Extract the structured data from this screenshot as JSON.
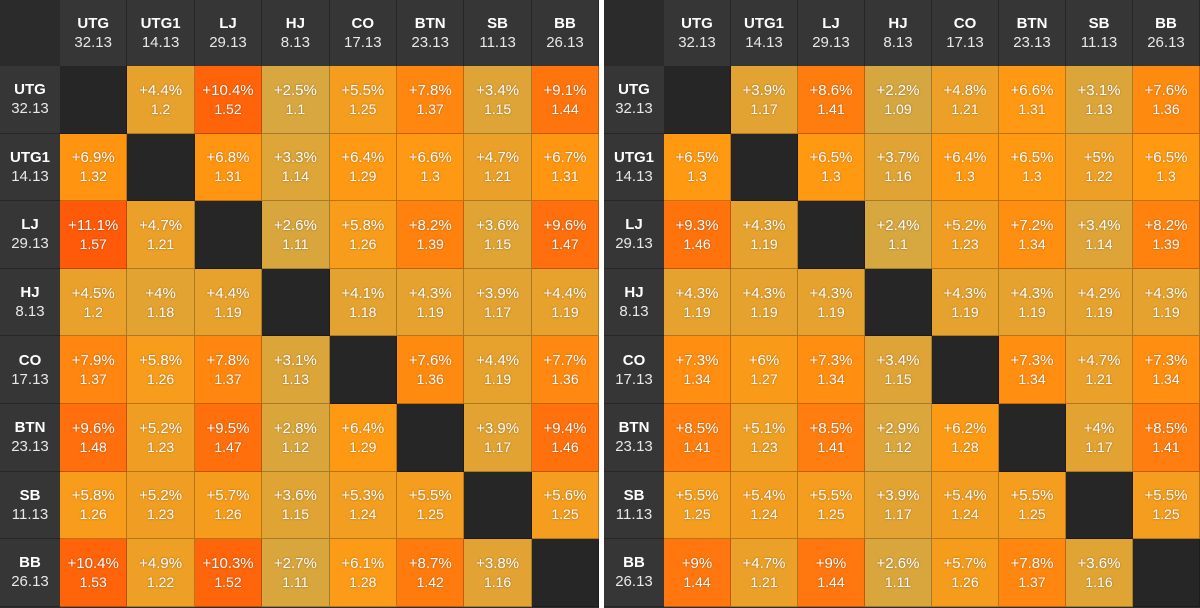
{
  "tables": [
    {
      "positions": [
        {
          "name": "UTG",
          "value": "32.13"
        },
        {
          "name": "UTG1",
          "value": "14.13"
        },
        {
          "name": "LJ",
          "value": "29.13"
        },
        {
          "name": "HJ",
          "value": "8.13"
        },
        {
          "name": "CO",
          "value": "17.13"
        },
        {
          "name": "BTN",
          "value": "23.13"
        },
        {
          "name": "SB",
          "value": "11.13"
        },
        {
          "name": "BB",
          "value": "26.13"
        }
      ],
      "rows": [
        [
          null,
          {
            "pct": "+4.4%",
            "mult": "1.2"
          },
          {
            "pct": "+10.4%",
            "mult": "1.52"
          },
          {
            "pct": "+2.5%",
            "mult": "1.1"
          },
          {
            "pct": "+5.5%",
            "mult": "1.25"
          },
          {
            "pct": "+7.8%",
            "mult": "1.37"
          },
          {
            "pct": "+3.4%",
            "mult": "1.15"
          },
          {
            "pct": "+9.1%",
            "mult": "1.44"
          }
        ],
        [
          {
            "pct": "+6.9%",
            "mult": "1.32"
          },
          null,
          {
            "pct": "+6.8%",
            "mult": "1.31"
          },
          {
            "pct": "+3.3%",
            "mult": "1.14"
          },
          {
            "pct": "+6.4%",
            "mult": "1.29"
          },
          {
            "pct": "+6.6%",
            "mult": "1.3"
          },
          {
            "pct": "+4.7%",
            "mult": "1.21"
          },
          {
            "pct": "+6.7%",
            "mult": "1.31"
          }
        ],
        [
          {
            "pct": "+11.1%",
            "mult": "1.57"
          },
          {
            "pct": "+4.7%",
            "mult": "1.21"
          },
          null,
          {
            "pct": "+2.6%",
            "mult": "1.11"
          },
          {
            "pct": "+5.8%",
            "mult": "1.26"
          },
          {
            "pct": "+8.2%",
            "mult": "1.39"
          },
          {
            "pct": "+3.6%",
            "mult": "1.15"
          },
          {
            "pct": "+9.6%",
            "mult": "1.47"
          }
        ],
        [
          {
            "pct": "+4.5%",
            "mult": "1.2"
          },
          {
            "pct": "+4%",
            "mult": "1.18"
          },
          {
            "pct": "+4.4%",
            "mult": "1.19"
          },
          null,
          {
            "pct": "+4.1%",
            "mult": "1.18"
          },
          {
            "pct": "+4.3%",
            "mult": "1.19"
          },
          {
            "pct": "+3.9%",
            "mult": "1.17"
          },
          {
            "pct": "+4.4%",
            "mult": "1.19"
          }
        ],
        [
          {
            "pct": "+7.9%",
            "mult": "1.37"
          },
          {
            "pct": "+5.8%",
            "mult": "1.26"
          },
          {
            "pct": "+7.8%",
            "mult": "1.37"
          },
          {
            "pct": "+3.1%",
            "mult": "1.13"
          },
          null,
          {
            "pct": "+7.6%",
            "mult": "1.36"
          },
          {
            "pct": "+4.4%",
            "mult": "1.19"
          },
          {
            "pct": "+7.7%",
            "mult": "1.36"
          }
        ],
        [
          {
            "pct": "+9.6%",
            "mult": "1.48"
          },
          {
            "pct": "+5.2%",
            "mult": "1.23"
          },
          {
            "pct": "+9.5%",
            "mult": "1.47"
          },
          {
            "pct": "+2.8%",
            "mult": "1.12"
          },
          {
            "pct": "+6.4%",
            "mult": "1.29"
          },
          null,
          {
            "pct": "+3.9%",
            "mult": "1.17"
          },
          {
            "pct": "+9.4%",
            "mult": "1.46"
          }
        ],
        [
          {
            "pct": "+5.8%",
            "mult": "1.26"
          },
          {
            "pct": "+5.2%",
            "mult": "1.23"
          },
          {
            "pct": "+5.7%",
            "mult": "1.26"
          },
          {
            "pct": "+3.6%",
            "mult": "1.15"
          },
          {
            "pct": "+5.3%",
            "mult": "1.24"
          },
          {
            "pct": "+5.5%",
            "mult": "1.25"
          },
          null,
          {
            "pct": "+5.6%",
            "mult": "1.25"
          }
        ],
        [
          {
            "pct": "+10.4%",
            "mult": "1.53"
          },
          {
            "pct": "+4.9%",
            "mult": "1.22"
          },
          {
            "pct": "+10.3%",
            "mult": "1.52"
          },
          {
            "pct": "+2.7%",
            "mult": "1.11"
          },
          {
            "pct": "+6.1%",
            "mult": "1.28"
          },
          {
            "pct": "+8.7%",
            "mult": "1.42"
          },
          {
            "pct": "+3.8%",
            "mult": "1.16"
          },
          null
        ]
      ]
    },
    {
      "positions": [
        {
          "name": "UTG",
          "value": "32.13"
        },
        {
          "name": "UTG1",
          "value": "14.13"
        },
        {
          "name": "LJ",
          "value": "29.13"
        },
        {
          "name": "HJ",
          "value": "8.13"
        },
        {
          "name": "CO",
          "value": "17.13"
        },
        {
          "name": "BTN",
          "value": "23.13"
        },
        {
          "name": "SB",
          "value": "11.13"
        },
        {
          "name": "BB",
          "value": "26.13"
        }
      ],
      "rows": [
        [
          null,
          {
            "pct": "+3.9%",
            "mult": "1.17"
          },
          {
            "pct": "+8.6%",
            "mult": "1.41"
          },
          {
            "pct": "+2.2%",
            "mult": "1.09"
          },
          {
            "pct": "+4.8%",
            "mult": "1.21"
          },
          {
            "pct": "+6.6%",
            "mult": "1.31"
          },
          {
            "pct": "+3.1%",
            "mult": "1.13"
          },
          {
            "pct": "+7.6%",
            "mult": "1.36"
          }
        ],
        [
          {
            "pct": "+6.5%",
            "mult": "1.3"
          },
          null,
          {
            "pct": "+6.5%",
            "mult": "1.3"
          },
          {
            "pct": "+3.7%",
            "mult": "1.16"
          },
          {
            "pct": "+6.4%",
            "mult": "1.3"
          },
          {
            "pct": "+6.5%",
            "mult": "1.3"
          },
          {
            "pct": "+5%",
            "mult": "1.22"
          },
          {
            "pct": "+6.5%",
            "mult": "1.3"
          }
        ],
        [
          {
            "pct": "+9.3%",
            "mult": "1.46"
          },
          {
            "pct": "+4.3%",
            "mult": "1.19"
          },
          null,
          {
            "pct": "+2.4%",
            "mult": "1.1"
          },
          {
            "pct": "+5.2%",
            "mult": "1.23"
          },
          {
            "pct": "+7.2%",
            "mult": "1.34"
          },
          {
            "pct": "+3.4%",
            "mult": "1.14"
          },
          {
            "pct": "+8.2%",
            "mult": "1.39"
          }
        ],
        [
          {
            "pct": "+4.3%",
            "mult": "1.19"
          },
          {
            "pct": "+4.3%",
            "mult": "1.19"
          },
          {
            "pct": "+4.3%",
            "mult": "1.19"
          },
          null,
          {
            "pct": "+4.3%",
            "mult": "1.19"
          },
          {
            "pct": "+4.3%",
            "mult": "1.19"
          },
          {
            "pct": "+4.2%",
            "mult": "1.19"
          },
          {
            "pct": "+4.3%",
            "mult": "1.19"
          }
        ],
        [
          {
            "pct": "+7.3%",
            "mult": "1.34"
          },
          {
            "pct": "+6%",
            "mult": "1.27"
          },
          {
            "pct": "+7.3%",
            "mult": "1.34"
          },
          {
            "pct": "+3.4%",
            "mult": "1.15"
          },
          null,
          {
            "pct": "+7.3%",
            "mult": "1.34"
          },
          {
            "pct": "+4.7%",
            "mult": "1.21"
          },
          {
            "pct": "+7.3%",
            "mult": "1.34"
          }
        ],
        [
          {
            "pct": "+8.5%",
            "mult": "1.41"
          },
          {
            "pct": "+5.1%",
            "mult": "1.23"
          },
          {
            "pct": "+8.5%",
            "mult": "1.41"
          },
          {
            "pct": "+2.9%",
            "mult": "1.12"
          },
          {
            "pct": "+6.2%",
            "mult": "1.28"
          },
          null,
          {
            "pct": "+4%",
            "mult": "1.17"
          },
          {
            "pct": "+8.5%",
            "mult": "1.41"
          }
        ],
        [
          {
            "pct": "+5.5%",
            "mult": "1.25"
          },
          {
            "pct": "+5.4%",
            "mult": "1.24"
          },
          {
            "pct": "+5.5%",
            "mult": "1.25"
          },
          {
            "pct": "+3.9%",
            "mult": "1.17"
          },
          {
            "pct": "+5.4%",
            "mult": "1.24"
          },
          {
            "pct": "+5.5%",
            "mult": "1.25"
          },
          null,
          {
            "pct": "+5.5%",
            "mult": "1.25"
          }
        ],
        [
          {
            "pct": "+9%",
            "mult": "1.44"
          },
          {
            "pct": "+4.7%",
            "mult": "1.21"
          },
          {
            "pct": "+9%",
            "mult": "1.44"
          },
          {
            "pct": "+2.6%",
            "mult": "1.11"
          },
          {
            "pct": "+5.7%",
            "mult": "1.26"
          },
          {
            "pct": "+7.8%",
            "mult": "1.37"
          },
          {
            "pct": "+3.6%",
            "mult": "1.16"
          },
          null
        ]
      ]
    }
  ],
  "colors": {
    "low": "#d4a843",
    "mid": "#ff9912",
    "high": "#ff5a0a",
    "diagonal": "#262626",
    "header": "#363636"
  }
}
